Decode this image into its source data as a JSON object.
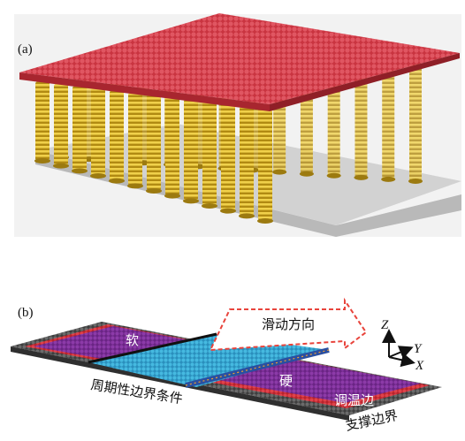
{
  "panels": {
    "a": {
      "label": "(a)"
    },
    "b": {
      "label": "(b)",
      "soft_label": "软",
      "hard_label": "硬",
      "sliding_direction_label": "滑动方向",
      "periodic_boundary_label": "周期性边界条件",
      "thermostat_edge_label": "调温边",
      "support_boundary_label": "支撑边界",
      "axes": {
        "z": "Z",
        "y": "Y",
        "x": "X"
      }
    }
  },
  "colors": {
    "top_plate": "#d7424e",
    "springs": "#e2bb2a",
    "base_plate": "#c9c9c9",
    "soft_layer": "#7a2d96",
    "hard_layer": "#33a6d2",
    "hard_edge": "#2a4fa0",
    "thermostat_edge": "#d63038",
    "support_edge": "#555555",
    "arrow_dashed": "#e8443c"
  }
}
